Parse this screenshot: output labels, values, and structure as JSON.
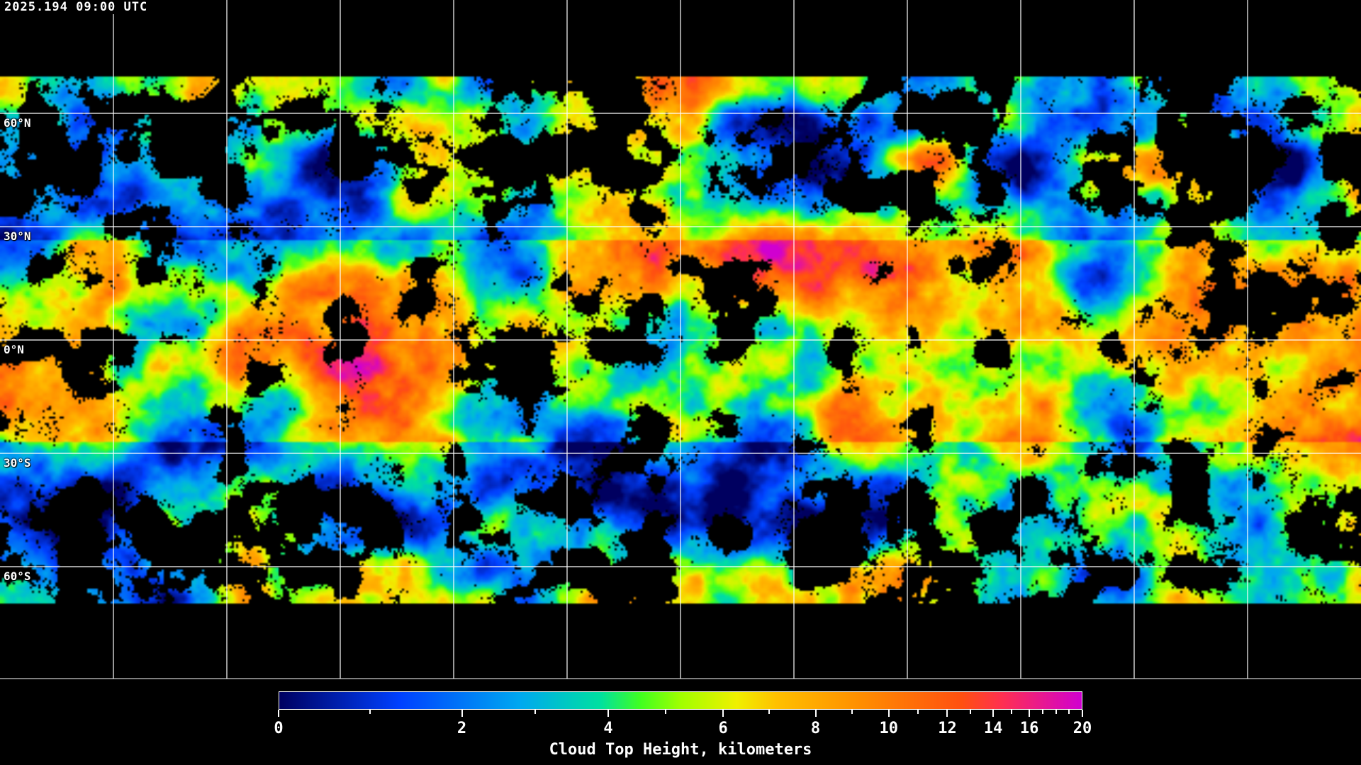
{
  "timestamp": "2025.194 09:00 UTC",
  "map": {
    "product": "Cloud Top Height",
    "projection": "equirectangular",
    "latitude_labels": [
      "60°N",
      "30°N",
      "0°N",
      "30°S",
      "60°S"
    ],
    "grid_spacing_degrees": 30,
    "clear_sky_color": "#000000",
    "coastline_color": "#ffffff",
    "grid_color": "#ffffff"
  },
  "colorbar": {
    "title": "Cloud Top Height, kilometers",
    "tick_labels": [
      "0",
      "2",
      "4",
      "6",
      "8",
      "10",
      "12",
      "14",
      "16",
      "20"
    ],
    "minor_ticks": [
      1,
      3,
      5,
      7,
      9,
      11,
      13,
      15,
      17,
      18,
      19
    ],
    "range": [
      0,
      20
    ],
    "colors": [
      "#000060",
      "#0040ff",
      "#00a8f0",
      "#00e0a0",
      "#40ff20",
      "#a0ff00",
      "#f0f000",
      "#ffc000",
      "#ff9000",
      "#ff5010",
      "#ff3050",
      "#d000d0"
    ]
  }
}
